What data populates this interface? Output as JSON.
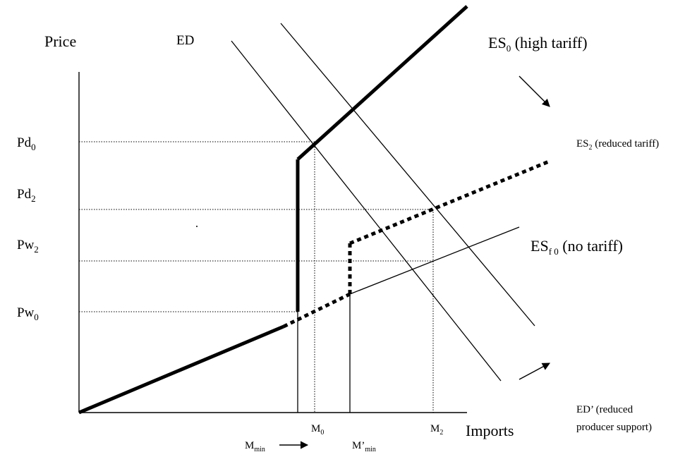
{
  "labels": {
    "price_axis": "Price",
    "imports_axis": "Imports",
    "ed": "ED",
    "es0_main": "ES",
    "es0_sub": "0",
    "es0_note": " (high tariff)",
    "es2_main": "ES",
    "es2_sub": "2",
    "es2_note": " (reduced tariff)",
    "esf0_main": "ES",
    "esf0_sub": "f 0",
    "esf0_note": "  (no tariff)",
    "ed_prime_line1": "ED’ (reduced",
    "ed_prime_line2": "producer support)"
  },
  "price_levels": [
    {
      "id": "pd0",
      "main": "Pd",
      "sub": "0"
    },
    {
      "id": "pd2",
      "main": "Pd",
      "sub": "2"
    },
    {
      "id": "pw2",
      "main": "Pw",
      "sub": "2"
    },
    {
      "id": "pw0",
      "main": "Pw",
      "sub": "0"
    }
  ],
  "quantity_levels": [
    {
      "id": "m0",
      "main": "M",
      "sub": "0"
    },
    {
      "id": "m2",
      "main": "M",
      "sub": "2"
    }
  ],
  "mmin": {
    "main": "M",
    "sub": "min"
  },
  "mmin_prime": {
    "main": "M’",
    "sub": "min"
  }
}
